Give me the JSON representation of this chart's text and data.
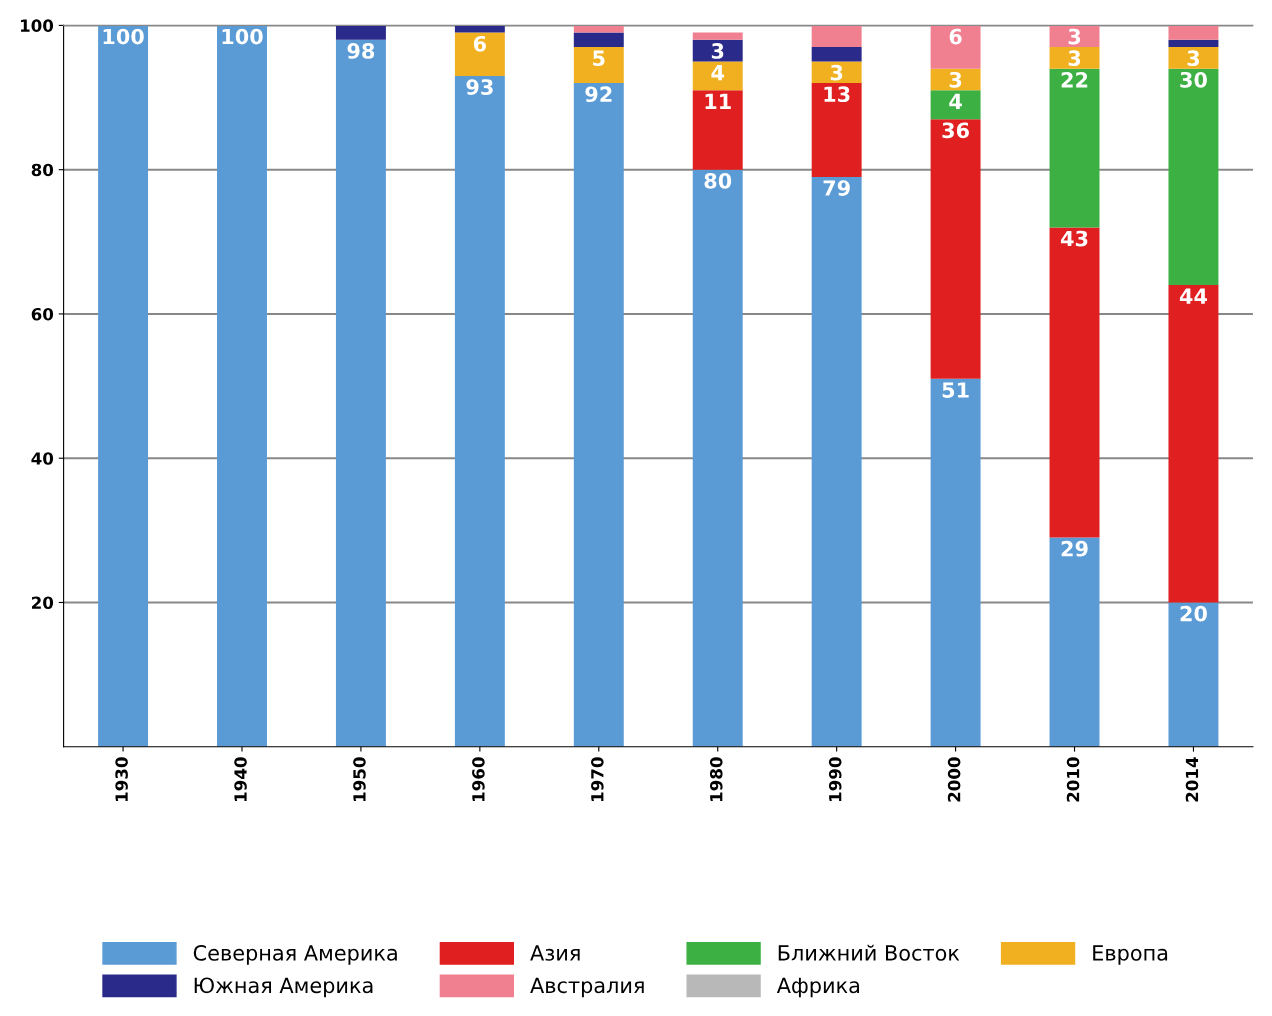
{
  "chart_data": {
    "type": "bar",
    "stacked": true,
    "categories": [
      "1930",
      "1940",
      "1950",
      "1960",
      "1970",
      "1980",
      "1990",
      "2000",
      "2010",
      "2014"
    ],
    "series": [
      {
        "name": "Северная Америка",
        "color": "#5b9bd5",
        "values": [
          100,
          100,
          98,
          93,
          92,
          80,
          79,
          51,
          29,
          20
        ],
        "value_labels": [
          "100",
          "100",
          "98",
          "93",
          "92",
          "80",
          "79",
          "51",
          "29",
          "20"
        ]
      },
      {
        "name": "Азия",
        "color": "#e02020",
        "values": [
          0,
          0,
          0,
          0,
          0,
          11,
          13,
          36,
          43,
          44
        ],
        "value_labels": [
          null,
          null,
          null,
          null,
          null,
          "11",
          "13",
          "36",
          "43",
          "44"
        ]
      },
      {
        "name": "Ближний Восток",
        "color": "#3cb043",
        "values": [
          0,
          0,
          0,
          0,
          0,
          0,
          0,
          4,
          22,
          30
        ],
        "value_labels": [
          null,
          null,
          null,
          null,
          null,
          null,
          null,
          "4",
          "22",
          "30"
        ]
      },
      {
        "name": "Европа",
        "color": "#f0b020",
        "values": [
          0,
          0,
          0,
          6,
          5,
          4,
          3,
          3,
          3,
          3
        ],
        "value_labels": [
          null,
          null,
          null,
          "6",
          "5",
          "4",
          "3",
          "3",
          "3",
          "3"
        ]
      },
      {
        "name": "Южная Америка",
        "color": "#2a2a8a",
        "values": [
          0,
          0,
          2,
          1,
          2,
          3,
          2,
          0,
          0,
          1
        ],
        "value_labels": [
          null,
          null,
          null,
          null,
          null,
          "3",
          null,
          null,
          null,
          null
        ]
      },
      {
        "name": "Австралия",
        "color": "#f08090",
        "values": [
          0,
          0,
          0,
          0,
          1,
          1,
          3,
          6,
          3,
          2
        ],
        "value_labels": [
          null,
          null,
          null,
          null,
          null,
          null,
          null,
          "6",
          "3",
          null
        ]
      },
      {
        "name": "Африка",
        "color": "#b8b8b8",
        "values": [
          0,
          0,
          0,
          0,
          0,
          0,
          0,
          0,
          0,
          0
        ]
      }
    ],
    "ylim": [
      0,
      100
    ],
    "yticks": [
      20,
      40,
      60,
      80,
      100
    ],
    "grid": "y",
    "legend": "bottom"
  }
}
